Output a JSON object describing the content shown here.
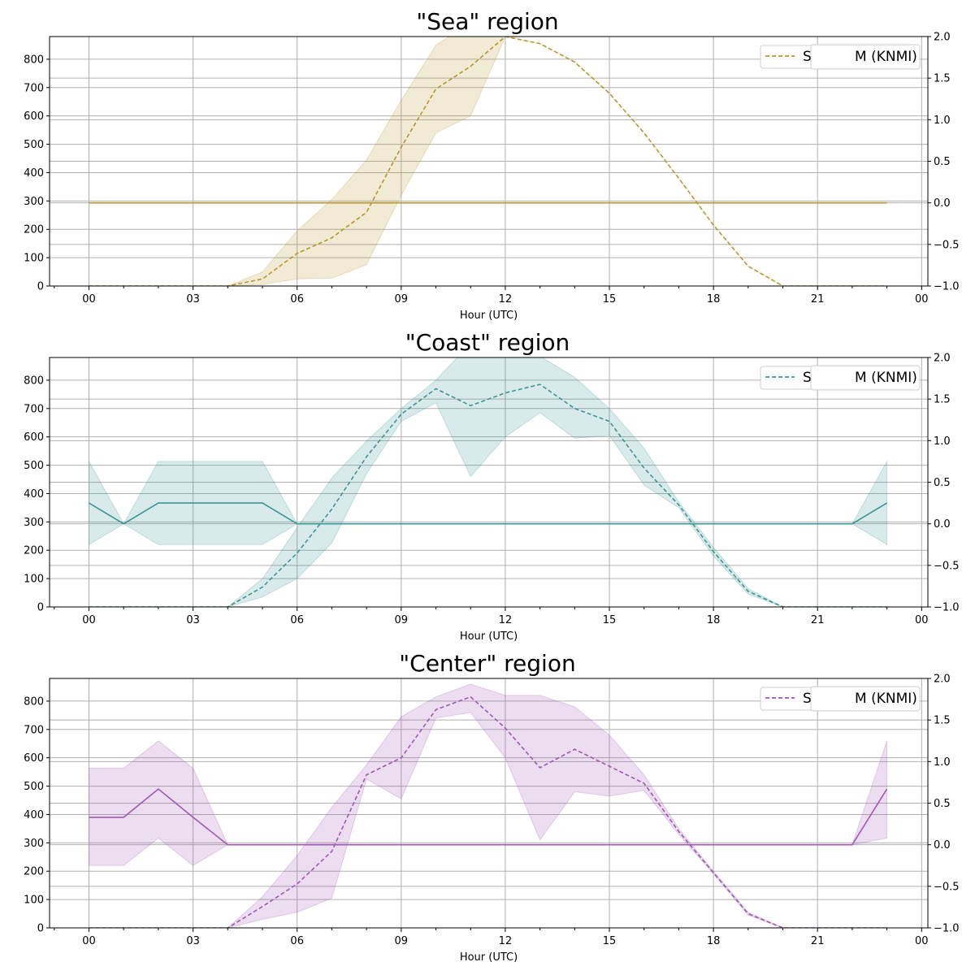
{
  "chart_data": [
    {
      "type": "line",
      "title": "\"Sea\" region",
      "xlabel": "Hour (UTC)",
      "x_tick_labels": [
        "00",
        "03",
        "06",
        "09",
        "12",
        "15",
        "18",
        "21",
        "00"
      ],
      "y_left_lim": [
        0,
        880
      ],
      "y_left_ticks": [
        "0",
        "100",
        "200",
        "300",
        "400",
        "500",
        "600",
        "700",
        "800"
      ],
      "y_right_lim": [
        -1.0,
        2.0
      ],
      "y_right_ticks": [
        "−1.0",
        "−0.5",
        "0.0",
        "0.5",
        "1.0",
        "1.5",
        "2.0"
      ],
      "grid": true,
      "color": "#b8962e",
      "legend_placement": "top-right",
      "legend_visible_text": [
        "S",
        "M (KNMI)"
      ],
      "x": [
        0,
        1,
        2,
        3,
        4,
        5,
        6,
        7,
        8,
        9,
        10,
        11,
        12,
        13,
        14,
        15,
        16,
        17,
        18,
        19,
        20,
        21,
        22,
        23
      ],
      "series": [
        {
          "style": "dashed",
          "axis": "left",
          "values": [
            0,
            0,
            0,
            0,
            0,
            25,
            115,
            170,
            260,
            490,
            695,
            775,
            880,
            855,
            790,
            680,
            540,
            380,
            215,
            70,
            0,
            0,
            0,
            0
          ],
          "band_low": [
            0,
            0,
            0,
            0,
            0,
            5,
            25,
            28,
            75,
            320,
            540,
            600,
            880,
            855,
            790,
            680,
            540,
            380,
            215,
            70,
            0,
            0,
            0,
            0
          ],
          "band_high": [
            0,
            0,
            0,
            0,
            0,
            50,
            195,
            305,
            445,
            655,
            850,
            930,
            880,
            855,
            790,
            680,
            540,
            380,
            215,
            70,
            0,
            0,
            0,
            0
          ]
        },
        {
          "style": "solid",
          "axis": "right",
          "values": [
            0,
            0,
            0,
            0,
            0,
            0,
            0,
            0,
            0,
            0,
            0,
            0,
            0,
            0,
            0,
            0,
            0,
            0,
            0,
            0,
            0,
            0,
            0,
            0
          ]
        }
      ]
    },
    {
      "type": "line",
      "title": "\"Coast\" region",
      "xlabel": "Hour (UTC)",
      "x_tick_labels": [
        "00",
        "03",
        "06",
        "09",
        "12",
        "15",
        "18",
        "21",
        "00"
      ],
      "y_left_lim": [
        0,
        880
      ],
      "y_left_ticks": [
        "0",
        "100",
        "200",
        "300",
        "400",
        "500",
        "600",
        "700",
        "800"
      ],
      "y_right_lim": [
        -1.0,
        2.0
      ],
      "y_right_ticks": [
        "−1.0",
        "−0.5",
        "0.0",
        "0.5",
        "1.0",
        "1.5",
        "2.0"
      ],
      "grid": true,
      "color": "#3d9696",
      "legend_placement": "top-right",
      "legend_visible_text": [
        "S",
        "M (KNMI)"
      ],
      "x": [
        0,
        1,
        2,
        3,
        4,
        5,
        6,
        7,
        8,
        9,
        10,
        11,
        12,
        13,
        14,
        15,
        16,
        17,
        18,
        19,
        20,
        21,
        22,
        23
      ],
      "series": [
        {
          "style": "dashed",
          "axis": "left",
          "values": [
            0,
            0,
            0,
            0,
            0,
            70,
            190,
            345,
            530,
            680,
            770,
            710,
            755,
            785,
            700,
            655,
            490,
            360,
            195,
            55,
            0,
            0,
            0,
            0
          ],
          "band_low": [
            0,
            0,
            0,
            0,
            0,
            35,
            100,
            225,
            470,
            655,
            720,
            460,
            600,
            685,
            595,
            605,
            430,
            350,
            180,
            45,
            0,
            0,
            0,
            0
          ],
          "band_high": [
            0,
            0,
            0,
            0,
            0,
            100,
            280,
            455,
            585,
            700,
            800,
            930,
            910,
            885,
            810,
            700,
            560,
            370,
            210,
            65,
            0,
            0,
            0,
            0
          ]
        },
        {
          "style": "solid",
          "axis": "right",
          "values": [
            0.25,
            0,
            0.25,
            0.25,
            0.25,
            0.25,
            0,
            0,
            0,
            0,
            0,
            0,
            0,
            0,
            0,
            0,
            0,
            0,
            0,
            0,
            0,
            0,
            0,
            0.25
          ],
          "band_low": [
            -0.25,
            0,
            -0.25,
            -0.25,
            -0.25,
            -0.25,
            0,
            0,
            0,
            0,
            0,
            0,
            0,
            0,
            0,
            0,
            0,
            0,
            0,
            0,
            0,
            0,
            0,
            -0.25
          ],
          "band_high": [
            0.75,
            0,
            0.75,
            0.75,
            0.75,
            0.75,
            0,
            0,
            0,
            0,
            0,
            0,
            0,
            0,
            0,
            0,
            0,
            0,
            0,
            0,
            0,
            0,
            0,
            0.75
          ]
        }
      ]
    },
    {
      "type": "line",
      "title": "\"Center\" region",
      "xlabel": "Hour (UTC)",
      "x_tick_labels": [
        "00",
        "03",
        "06",
        "09",
        "12",
        "15",
        "18",
        "21",
        "00"
      ],
      "y_left_lim": [
        0,
        880
      ],
      "y_left_ticks": [
        "0",
        "100",
        "200",
        "300",
        "400",
        "500",
        "600",
        "700",
        "800"
      ],
      "y_right_lim": [
        -1.0,
        2.0
      ],
      "y_right_ticks": [
        "−1.0",
        "−0.5",
        "0.0",
        "0.5",
        "1.0",
        "1.5",
        "2.0"
      ],
      "grid": true,
      "color": "#a157b8",
      "legend_placement": "top-right",
      "legend_visible_text": [
        "S",
        "M (KNMI)"
      ],
      "x": [
        0,
        1,
        2,
        3,
        4,
        5,
        6,
        7,
        8,
        9,
        10,
        11,
        12,
        13,
        14,
        15,
        16,
        17,
        18,
        19,
        20,
        21,
        22,
        23
      ],
      "series": [
        {
          "style": "dashed",
          "axis": "left",
          "values": [
            0,
            0,
            0,
            0,
            0,
            75,
            155,
            270,
            540,
            600,
            770,
            815,
            705,
            565,
            630,
            570,
            510,
            340,
            195,
            50,
            0,
            0,
            0,
            0
          ],
          "band_low": [
            0,
            0,
            0,
            0,
            0,
            30,
            55,
            105,
            525,
            455,
            740,
            760,
            600,
            310,
            480,
            465,
            485,
            330,
            190,
            45,
            0,
            0,
            0,
            0
          ],
          "band_high": [
            0,
            0,
            0,
            0,
            0,
            110,
            255,
            425,
            575,
            745,
            815,
            860,
            820,
            820,
            780,
            680,
            540,
            350,
            200,
            55,
            0,
            0,
            0,
            0
          ]
        },
        {
          "style": "solid",
          "axis": "right",
          "values": [
            0.33,
            0.33,
            0.67,
            0.33,
            0,
            0,
            0,
            0,
            0,
            0,
            0,
            0,
            0,
            0,
            0,
            0,
            0,
            0,
            0,
            0,
            0,
            0,
            0,
            0.67
          ],
          "band_low": [
            -0.25,
            -0.25,
            0.08,
            -0.25,
            0,
            0,
            0,
            0,
            0,
            0,
            0,
            0,
            0,
            0,
            0,
            0,
            0,
            0,
            0,
            0,
            0,
            0,
            0,
            0.08
          ],
          "band_high": [
            0.92,
            0.92,
            1.25,
            0.92,
            0,
            0,
            0,
            0,
            0,
            0,
            0,
            0,
            0,
            0,
            0,
            0,
            0,
            0,
            0,
            0,
            0,
            0,
            0,
            1.25
          ]
        }
      ]
    }
  ]
}
